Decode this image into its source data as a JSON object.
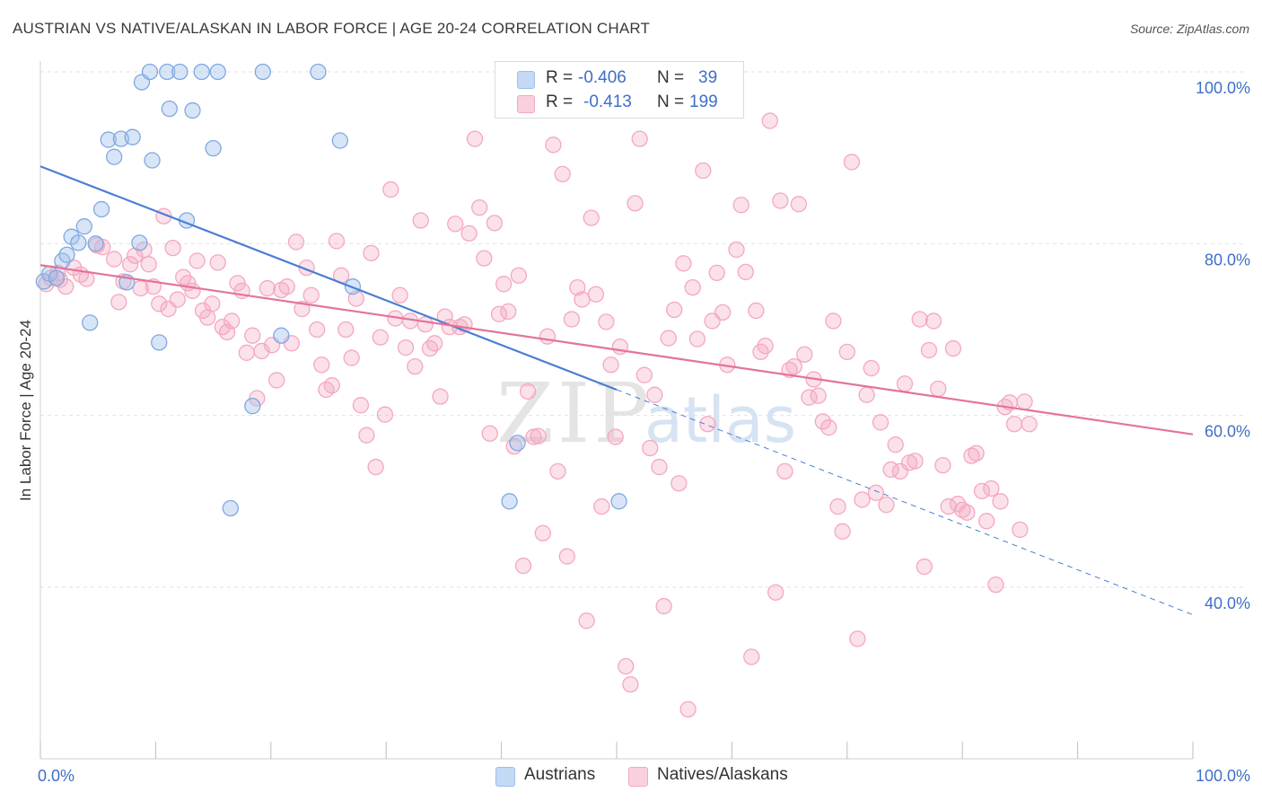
{
  "title": "AUSTRIAN VS NATIVE/ALASKAN IN LABOR FORCE | AGE 20-24 CORRELATION CHART",
  "source": "Source: ZipAtlas.com",
  "watermark": {
    "zip": "ZIP",
    "atlas": "atlas"
  },
  "legend": {
    "rows": [
      {
        "r_label": "R = ",
        "r_value": "-0.406",
        "n_label": "N = ",
        "n_value": "39",
        "color": "#9dbfea"
      },
      {
        "r_label": "R = ",
        "r_value": "-0.413",
        "n_label": "N = ",
        "n_value": "199",
        "color": "#f4a8c0"
      }
    ]
  },
  "bottom_legend": [
    {
      "label": "Austrians",
      "color": "#9dbfea"
    },
    {
      "label": "Natives/Alaskans",
      "color": "#f4a8c0"
    }
  ],
  "chart_data": {
    "type": "scatter",
    "title": "AUSTRIAN VS NATIVE/ALASKAN IN LABOR FORCE | AGE 20-24 CORRELATION CHART",
    "xlabel": "",
    "ylabel": "In Labor Force | Age 20-24",
    "xlim": [
      0,
      100
    ],
    "ylim": [
      20,
      102
    ],
    "x_tick_labels": [
      "0.0%",
      "100.0%"
    ],
    "y_ticks": [
      40,
      60,
      80,
      100
    ],
    "y_tick_labels": [
      "40.0%",
      "60.0%",
      "80.0%",
      "100.0%"
    ],
    "grid": true,
    "legend_placement": "top-center",
    "colors": {
      "austrians": "#4a7fd4",
      "natives": "#e3739a",
      "austrians_fill": "#9dbfea",
      "natives_fill": "#f4a8c0",
      "tick_label": "#3f6fc6"
    },
    "series": [
      {
        "name": "Austrians",
        "trend": {
          "x0": 0,
          "y0": 89.0,
          "x1": 50,
          "y1": 63.0,
          "dashed_to_x": 100,
          "dashed_to_y": 36.8
        },
        "points": [
          [
            0.3,
            75.6
          ],
          [
            0.8,
            76.5
          ],
          [
            1.4,
            76.0
          ],
          [
            1.9,
            78.0
          ],
          [
            2.3,
            78.7
          ],
          [
            2.7,
            80.8
          ],
          [
            3.3,
            80.1
          ],
          [
            3.8,
            82.0
          ],
          [
            4.3,
            70.8
          ],
          [
            4.8,
            80.0
          ],
          [
            5.3,
            84.0
          ],
          [
            5.9,
            92.1
          ],
          [
            6.4,
            90.1
          ],
          [
            7.0,
            92.2
          ],
          [
            7.5,
            75.5
          ],
          [
            8.0,
            92.4
          ],
          [
            8.6,
            80.1
          ],
          [
            8.8,
            98.8
          ],
          [
            9.5,
            100.0
          ],
          [
            9.7,
            89.7
          ],
          [
            10.3,
            68.5
          ],
          [
            11.0,
            100.0
          ],
          [
            11.2,
            95.7
          ],
          [
            12.1,
            100.0
          ],
          [
            12.7,
            82.7
          ],
          [
            13.2,
            95.5
          ],
          [
            14.0,
            100.0
          ],
          [
            15.0,
            91.1
          ],
          [
            15.4,
            100.0
          ],
          [
            16.5,
            49.2
          ],
          [
            18.4,
            61.1
          ],
          [
            19.3,
            100.0
          ],
          [
            20.9,
            69.3
          ],
          [
            24.1,
            100.0
          ],
          [
            26.0,
            92.0
          ],
          [
            27.1,
            75.0
          ],
          [
            41.4,
            56.8
          ],
          [
            40.7,
            50.0
          ],
          [
            50.2,
            50.0
          ]
        ]
      },
      {
        "name": "Natives/Alaskans",
        "trend": {
          "x0": 0,
          "y0": 77.5,
          "x1": 100,
          "y1": 57.8
        },
        "points": [
          [
            0.5,
            75.3
          ],
          [
            0.9,
            76.0
          ],
          [
            1.5,
            76.6
          ],
          [
            1.7,
            75.8
          ],
          [
            2.2,
            75.0
          ],
          [
            2.9,
            77.2
          ],
          [
            3.5,
            76.4
          ],
          [
            4.0,
            75.9
          ],
          [
            4.9,
            79.8
          ],
          [
            5.4,
            79.6
          ],
          [
            6.4,
            78.2
          ],
          [
            6.8,
            73.2
          ],
          [
            7.2,
            75.6
          ],
          [
            7.8,
            77.6
          ],
          [
            8.2,
            78.6
          ],
          [
            8.7,
            74.8
          ],
          [
            9.0,
            79.3
          ],
          [
            9.4,
            77.6
          ],
          [
            9.8,
            75.0
          ],
          [
            10.3,
            73.0
          ],
          [
            10.7,
            83.2
          ],
          [
            11.1,
            72.4
          ],
          [
            11.5,
            79.5
          ],
          [
            11.9,
            73.5
          ],
          [
            12.4,
            76.1
          ],
          [
            12.8,
            75.4
          ],
          [
            13.2,
            74.5
          ],
          [
            13.6,
            78.0
          ],
          [
            14.1,
            72.2
          ],
          [
            14.5,
            71.4
          ],
          [
            14.9,
            73.0
          ],
          [
            15.4,
            77.8
          ],
          [
            15.8,
            70.3
          ],
          [
            16.2,
            69.7
          ],
          [
            16.6,
            71.0
          ],
          [
            17.1,
            75.4
          ],
          [
            17.5,
            74.5
          ],
          [
            17.9,
            67.3
          ],
          [
            18.4,
            69.3
          ],
          [
            18.8,
            62.0
          ],
          [
            19.2,
            67.5
          ],
          [
            19.7,
            74.8
          ],
          [
            20.1,
            68.2
          ],
          [
            20.5,
            64.1
          ],
          [
            20.9,
            74.6
          ],
          [
            21.4,
            75.0
          ],
          [
            21.8,
            68.4
          ],
          [
            22.2,
            80.2
          ],
          [
            22.7,
            72.4
          ],
          [
            23.1,
            77.2
          ],
          [
            23.5,
            74.0
          ],
          [
            24.0,
            70.0
          ],
          [
            24.4,
            65.9
          ],
          [
            24.8,
            63.0
          ],
          [
            25.3,
            63.5
          ],
          [
            25.7,
            80.3
          ],
          [
            26.1,
            76.3
          ],
          [
            26.5,
            70.0
          ],
          [
            27.0,
            66.7
          ],
          [
            27.4,
            73.6
          ],
          [
            27.8,
            61.2
          ],
          [
            28.3,
            57.7
          ],
          [
            28.7,
            78.9
          ],
          [
            29.1,
            54.0
          ],
          [
            29.5,
            69.1
          ],
          [
            29.9,
            60.1
          ],
          [
            30.4,
            86.3
          ],
          [
            30.8,
            71.3
          ],
          [
            31.2,
            74.0
          ],
          [
            31.7,
            67.9
          ],
          [
            32.1,
            71.0
          ],
          [
            32.5,
            65.7
          ],
          [
            33.0,
            82.7
          ],
          [
            33.4,
            70.6
          ],
          [
            33.8,
            67.8
          ],
          [
            34.2,
            68.4
          ],
          [
            34.7,
            62.2
          ],
          [
            35.1,
            71.5
          ],
          [
            35.5,
            70.3
          ],
          [
            36.0,
            82.3
          ],
          [
            36.4,
            70.3
          ],
          [
            36.8,
            70.6
          ],
          [
            37.2,
            81.2
          ],
          [
            37.7,
            92.2
          ],
          [
            38.1,
            84.2
          ],
          [
            38.5,
            78.3
          ],
          [
            39.0,
            57.9
          ],
          [
            39.4,
            82.4
          ],
          [
            39.8,
            71.8
          ],
          [
            40.2,
            75.3
          ],
          [
            40.6,
            72.1
          ],
          [
            41.1,
            56.4
          ],
          [
            41.5,
            76.3
          ],
          [
            41.9,
            42.5
          ],
          [
            42.3,
            62.8
          ],
          [
            42.8,
            57.5
          ],
          [
            43.2,
            57.6
          ],
          [
            43.6,
            46.3
          ],
          [
            44.0,
            69.2
          ],
          [
            44.5,
            91.5
          ],
          [
            44.9,
            53.5
          ],
          [
            45.3,
            88.1
          ],
          [
            45.7,
            43.6
          ],
          [
            46.1,
            71.2
          ],
          [
            46.6,
            74.9
          ],
          [
            47.0,
            73.5
          ],
          [
            47.4,
            36.1
          ],
          [
            47.8,
            83.0
          ],
          [
            48.2,
            74.1
          ],
          [
            48.7,
            49.4
          ],
          [
            49.1,
            70.9
          ],
          [
            49.5,
            65.9
          ],
          [
            49.9,
            57.5
          ],
          [
            50.3,
            68.0
          ],
          [
            50.8,
            30.8
          ],
          [
            51.2,
            28.7
          ],
          [
            51.6,
            84.7
          ],
          [
            52.0,
            92.2
          ],
          [
            52.4,
            64.7
          ],
          [
            52.9,
            56.2
          ],
          [
            53.3,
            62.4
          ],
          [
            53.7,
            54.0
          ],
          [
            54.1,
            37.8
          ],
          [
            54.5,
            69.0
          ],
          [
            55.0,
            72.3
          ],
          [
            55.4,
            52.1
          ],
          [
            55.8,
            77.7
          ],
          [
            56.2,
            25.8
          ],
          [
            56.6,
            74.9
          ],
          [
            57.0,
            68.9
          ],
          [
            57.5,
            88.5
          ],
          [
            57.9,
            59.0
          ],
          [
            58.3,
            71.0
          ],
          [
            58.7,
            76.6
          ],
          [
            59.2,
            72.0
          ],
          [
            59.6,
            65.9
          ],
          [
            60.0,
            100.0
          ],
          [
            60.4,
            79.3
          ],
          [
            60.8,
            84.5
          ],
          [
            61.2,
            76.7
          ],
          [
            61.7,
            31.9
          ],
          [
            62.1,
            72.2
          ],
          [
            62.5,
            67.4
          ],
          [
            62.9,
            68.1
          ],
          [
            63.3,
            94.3
          ],
          [
            63.8,
            39.4
          ],
          [
            64.2,
            85.0
          ],
          [
            64.6,
            53.5
          ],
          [
            65.0,
            65.3
          ],
          [
            65.4,
            65.7
          ],
          [
            65.8,
            84.6
          ],
          [
            66.3,
            67.1
          ],
          [
            66.7,
            62.1
          ],
          [
            67.1,
            64.2
          ],
          [
            67.5,
            62.3
          ],
          [
            67.9,
            59.3
          ],
          [
            68.4,
            58.6
          ],
          [
            68.8,
            71.0
          ],
          [
            69.2,
            49.4
          ],
          [
            69.6,
            46.5
          ],
          [
            70.0,
            67.4
          ],
          [
            70.4,
            89.5
          ],
          [
            70.9,
            34.0
          ],
          [
            71.3,
            50.2
          ],
          [
            71.7,
            62.4
          ],
          [
            72.1,
            65.5
          ],
          [
            72.5,
            51.0
          ],
          [
            72.9,
            59.2
          ],
          [
            73.4,
            49.6
          ],
          [
            73.8,
            53.7
          ],
          [
            74.2,
            56.6
          ],
          [
            74.6,
            53.5
          ],
          [
            75.0,
            63.7
          ],
          [
            75.4,
            54.5
          ],
          [
            75.9,
            54.7
          ],
          [
            76.3,
            71.2
          ],
          [
            76.7,
            42.4
          ],
          [
            77.1,
            67.6
          ],
          [
            77.5,
            71.0
          ],
          [
            77.9,
            63.1
          ],
          [
            78.3,
            54.2
          ],
          [
            78.8,
            49.4
          ],
          [
            79.2,
            67.8
          ],
          [
            79.6,
            49.7
          ],
          [
            80.0,
            49.0
          ],
          [
            80.4,
            48.7
          ],
          [
            80.8,
            55.3
          ],
          [
            81.2,
            55.6
          ],
          [
            81.7,
            51.2
          ],
          [
            82.1,
            47.7
          ],
          [
            82.5,
            51.5
          ],
          [
            82.9,
            40.3
          ],
          [
            83.3,
            50.0
          ],
          [
            83.7,
            61.0
          ],
          [
            84.1,
            61.5
          ],
          [
            84.5,
            59.0
          ],
          [
            85.0,
            46.7
          ],
          [
            85.4,
            61.6
          ],
          [
            85.8,
            59.0
          ]
        ]
      }
    ]
  }
}
